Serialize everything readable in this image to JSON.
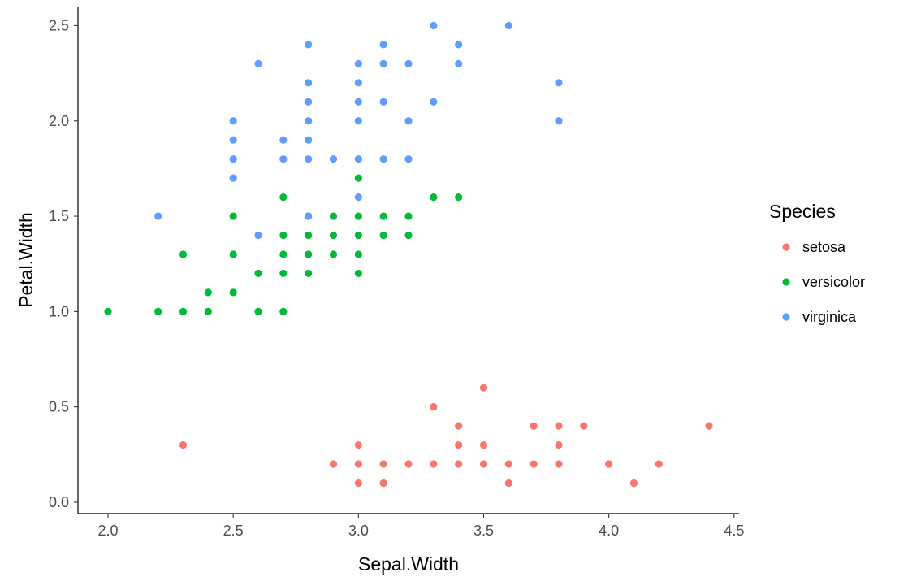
{
  "chart_data": {
    "type": "scatter",
    "title": "",
    "xlabel": "Sepal.Width",
    "ylabel": "Petal.Width",
    "xlim": [
      1.88,
      4.52
    ],
    "ylim": [
      -0.06,
      2.6
    ],
    "x_ticks": [
      2.0,
      2.5,
      3.0,
      3.5,
      4.0,
      4.5
    ],
    "x_tick_labels": [
      "2.0",
      "2.5",
      "3.0",
      "3.5",
      "4.0",
      "4.5"
    ],
    "y_ticks": [
      0.0,
      0.5,
      1.0,
      1.5,
      2.0,
      2.5
    ],
    "y_tick_labels": [
      "0.0",
      "0.5",
      "1.0",
      "1.5",
      "2.0",
      "2.5"
    ],
    "grid": false,
    "legend": {
      "title": "Species",
      "position": "right"
    },
    "series": [
      {
        "name": "setosa",
        "color": "#F8766D",
        "points": [
          [
            2.3,
            0.3
          ],
          [
            2.9,
            0.2
          ],
          [
            3.0,
            0.1
          ],
          [
            3.0,
            0.2
          ],
          [
            3.0,
            0.3
          ],
          [
            3.1,
            0.1
          ],
          [
            3.1,
            0.2
          ],
          [
            3.2,
            0.2
          ],
          [
            3.3,
            0.2
          ],
          [
            3.3,
            0.5
          ],
          [
            3.4,
            0.2
          ],
          [
            3.4,
            0.3
          ],
          [
            3.4,
            0.4
          ],
          [
            3.5,
            0.2
          ],
          [
            3.5,
            0.3
          ],
          [
            3.5,
            0.6
          ],
          [
            3.6,
            0.1
          ],
          [
            3.6,
            0.2
          ],
          [
            3.7,
            0.2
          ],
          [
            3.7,
            0.4
          ],
          [
            3.8,
            0.2
          ],
          [
            3.8,
            0.3
          ],
          [
            3.8,
            0.4
          ],
          [
            3.9,
            0.4
          ],
          [
            4.0,
            0.2
          ],
          [
            4.1,
            0.1
          ],
          [
            4.2,
            0.2
          ],
          [
            4.4,
            0.4
          ]
        ]
      },
      {
        "name": "versicolor",
        "color": "#00BA38",
        "points": [
          [
            2.0,
            1.0
          ],
          [
            2.2,
            1.0
          ],
          [
            2.3,
            1.0
          ],
          [
            2.3,
            1.3
          ],
          [
            2.4,
            1.0
          ],
          [
            2.4,
            1.1
          ],
          [
            2.5,
            1.1
          ],
          [
            2.5,
            1.3
          ],
          [
            2.5,
            1.5
          ],
          [
            2.6,
            1.0
          ],
          [
            2.6,
            1.2
          ],
          [
            2.7,
            1.0
          ],
          [
            2.7,
            1.2
          ],
          [
            2.7,
            1.3
          ],
          [
            2.7,
            1.4
          ],
          [
            2.7,
            1.6
          ],
          [
            2.8,
            1.2
          ],
          [
            2.8,
            1.3
          ],
          [
            2.8,
            1.4
          ],
          [
            2.8,
            1.5
          ],
          [
            2.9,
            1.3
          ],
          [
            2.9,
            1.4
          ],
          [
            2.9,
            1.5
          ],
          [
            3.0,
            1.2
          ],
          [
            3.0,
            1.3
          ],
          [
            3.0,
            1.4
          ],
          [
            3.0,
            1.5
          ],
          [
            3.0,
            1.7
          ],
          [
            3.1,
            1.4
          ],
          [
            3.1,
            1.5
          ],
          [
            3.2,
            1.4
          ],
          [
            3.2,
            1.5
          ],
          [
            3.3,
            1.6
          ],
          [
            3.4,
            1.6
          ]
        ]
      },
      {
        "name": "virginica",
        "color": "#619CFF",
        "points": [
          [
            2.2,
            1.5
          ],
          [
            2.5,
            1.7
          ],
          [
            2.5,
            1.8
          ],
          [
            2.5,
            1.9
          ],
          [
            2.5,
            2.0
          ],
          [
            2.6,
            1.4
          ],
          [
            2.6,
            2.3
          ],
          [
            2.7,
            1.8
          ],
          [
            2.7,
            1.9
          ],
          [
            2.8,
            1.5
          ],
          [
            2.8,
            1.8
          ],
          [
            2.8,
            1.9
          ],
          [
            2.8,
            2.0
          ],
          [
            2.8,
            2.1
          ],
          [
            2.8,
            2.2
          ],
          [
            2.8,
            2.4
          ],
          [
            2.9,
            1.8
          ],
          [
            3.0,
            1.6
          ],
          [
            3.0,
            1.8
          ],
          [
            3.0,
            2.0
          ],
          [
            3.0,
            2.1
          ],
          [
            3.0,
            2.2
          ],
          [
            3.0,
            2.3
          ],
          [
            3.1,
            1.8
          ],
          [
            3.1,
            2.1
          ],
          [
            3.1,
            2.3
          ],
          [
            3.1,
            2.4
          ],
          [
            3.2,
            1.8
          ],
          [
            3.2,
            2.0
          ],
          [
            3.2,
            2.3
          ],
          [
            3.3,
            2.1
          ],
          [
            3.3,
            2.5
          ],
          [
            3.4,
            2.3
          ],
          [
            3.4,
            2.4
          ],
          [
            3.6,
            2.5
          ],
          [
            3.8,
            2.0
          ],
          [
            3.8,
            2.2
          ]
        ]
      }
    ]
  }
}
